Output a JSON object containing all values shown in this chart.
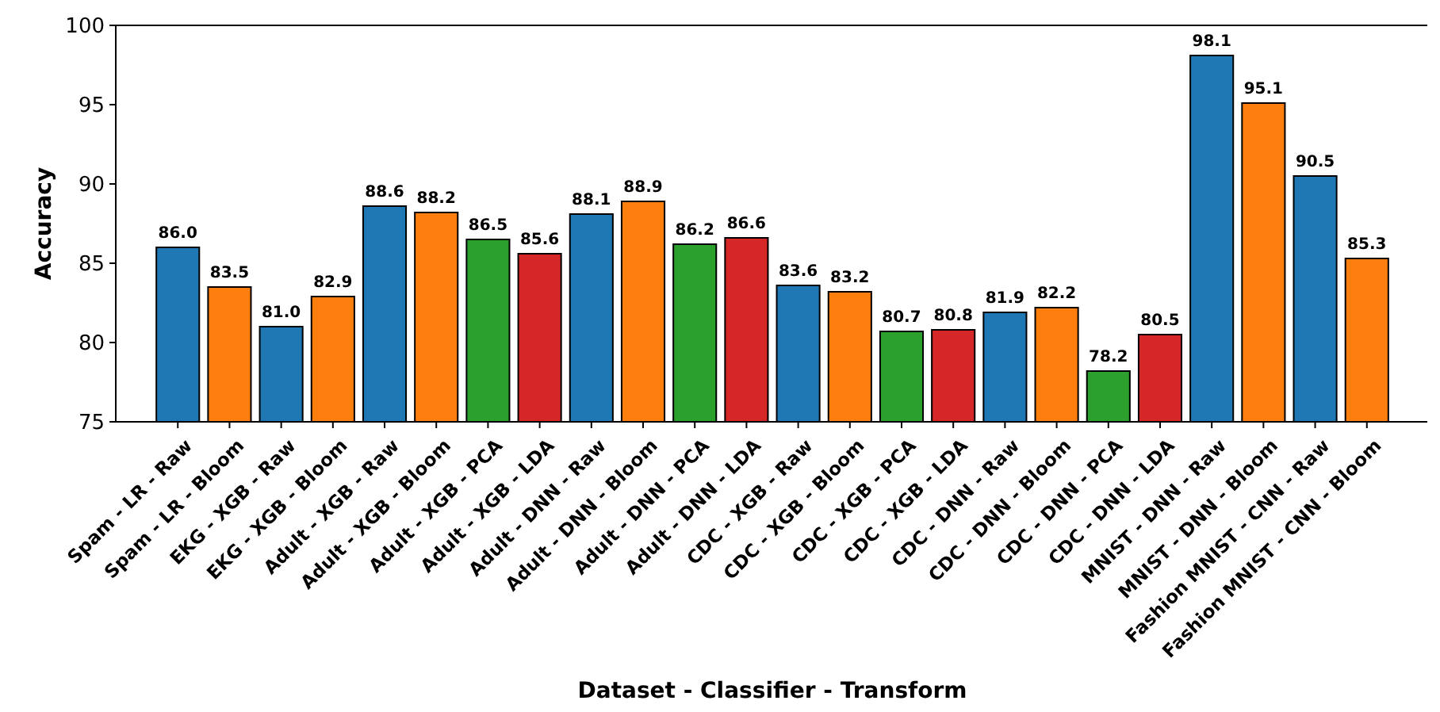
{
  "chart_data": {
    "type": "bar",
    "xlabel": "Dataset - Classifier - Transform",
    "ylabel": "Accuracy",
    "categories": [
      "Spam - LR - Raw",
      "Spam - LR - Bloom",
      "EKG - XGB - Raw",
      "EKG - XGB - Bloom",
      "Adult - XGB - Raw",
      "Adult - XGB - Bloom",
      "Adult - XGB - PCA",
      "Adult - XGB - LDA",
      "Adult - DNN - Raw",
      "Adult - DNN - Bloom",
      "Adult - DNN - PCA",
      "Adult - DNN - LDA",
      "CDC - XGB - Raw",
      "CDC - XGB - Bloom",
      "CDC - XGB - PCA",
      "CDC - XGB - LDA",
      "CDC - DNN - Raw",
      "CDC - DNN - Bloom",
      "CDC - DNN - PCA",
      "CDC - DNN - LDA",
      "MNIST - DNN - Raw",
      "MNIST - DNN - Bloom",
      "Fashion MNIST - CNN - Raw",
      "Fashion MNIST - CNN - Bloom"
    ],
    "values": [
      86.0,
      83.5,
      81.0,
      82.9,
      88.6,
      88.2,
      86.5,
      85.6,
      88.1,
      88.9,
      86.2,
      86.6,
      83.6,
      83.2,
      80.7,
      80.8,
      81.9,
      82.2,
      78.2,
      80.5,
      98.1,
      95.1,
      90.5,
      85.3
    ],
    "value_labels": [
      "86.0",
      "83.5",
      "81.0",
      "82.9",
      "88.6",
      "88.2",
      "86.5",
      "85.6",
      "88.1",
      "88.9",
      "86.2",
      "86.6",
      "83.6",
      "83.2",
      "80.7",
      "80.8",
      "81.9",
      "82.2",
      "78.2",
      "80.5",
      "98.1",
      "95.1",
      "90.5",
      "85.3"
    ],
    "colors": [
      "#1f77b4",
      "#ff7f0e",
      "#1f77b4",
      "#ff7f0e",
      "#1f77b4",
      "#ff7f0e",
      "#2ca02c",
      "#d62728",
      "#1f77b4",
      "#ff7f0e",
      "#2ca02c",
      "#d62728",
      "#1f77b4",
      "#ff7f0e",
      "#2ca02c",
      "#d62728",
      "#1f77b4",
      "#ff7f0e",
      "#2ca02c",
      "#d62728",
      "#1f77b4",
      "#ff7f0e",
      "#1f77b4",
      "#ff7f0e"
    ],
    "ylim": [
      75,
      100
    ],
    "yticks": [
      75,
      80,
      85,
      90,
      95,
      100
    ]
  }
}
